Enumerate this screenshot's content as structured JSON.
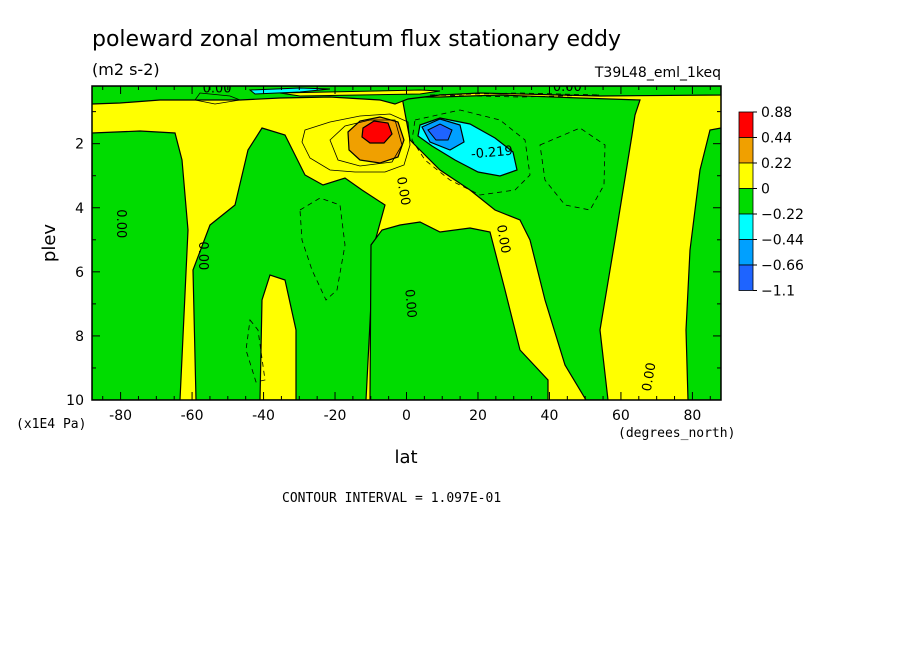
{
  "chart_data": {
    "type": "contour",
    "title": "poleward zonal momentum flux stationary eddy",
    "units": "(m2 s-2)",
    "run_label": "T39L48_eml_1keq",
    "xlabel": "lat",
    "x_units": "(degrees_north)",
    "ylabel": "plev",
    "y_units": "(x1E4 Pa)",
    "xlim": [
      -88,
      88
    ],
    "ylim": [
      10,
      0.2
    ],
    "x_ticks": [
      -80,
      -60,
      -40,
      -20,
      0,
      20,
      40,
      60,
      80
    ],
    "y_ticks": [
      2,
      4,
      6,
      8,
      10
    ],
    "contour_interval_text": "CONTOUR INTERVAL = 1.097E-01",
    "legend": {
      "labels": [
        "0.88",
        "0.44",
        "0.22",
        "0",
        "−0.22",
        "−0.44",
        "−0.66",
        "−1.1"
      ],
      "colors": [
        "#ff0000",
        "#f0a000",
        "#ffff00",
        "#00dc00",
        "#00ffff",
        "#00a0ff",
        "#1e64ff"
      ]
    },
    "contour_labels": [
      {
        "text": "0.00",
        "lat": -53,
        "plev": 0.4,
        "rotate": 0
      },
      {
        "text": "0.00",
        "lat": 45,
        "plev": 0.35,
        "rotate": 0
      },
      {
        "text": "0.00",
        "lat": -81,
        "plev": 4.5,
        "rotate": 90
      },
      {
        "text": "0.00",
        "lat": -58,
        "plev": 5.5,
        "rotate": 90
      },
      {
        "text": "0.00",
        "lat": -2,
        "plev": 3.5,
        "rotate": 80
      },
      {
        "text": "0.00",
        "lat": 0,
        "plev": 7.0,
        "rotate": 85
      },
      {
        "text": "0.00",
        "lat": 26,
        "plev": 5.0,
        "rotate": 80
      },
      {
        "text": "0.00",
        "lat": 69,
        "plev": 9.3,
        "rotate": -80
      },
      {
        "text": "-0.219",
        "lat": 24,
        "plev": 2.4,
        "rotate": -5
      }
    ],
    "colors": {
      "positive_low": "#ffff00",
      "negative_low": "#00dc00",
      "positive_mid": "#f0a000",
      "positive_high": "#ff0000",
      "negative_mid": "#00ffff",
      "negative_high": "#00a0ff",
      "negative_max": "#1e64ff"
    }
  }
}
